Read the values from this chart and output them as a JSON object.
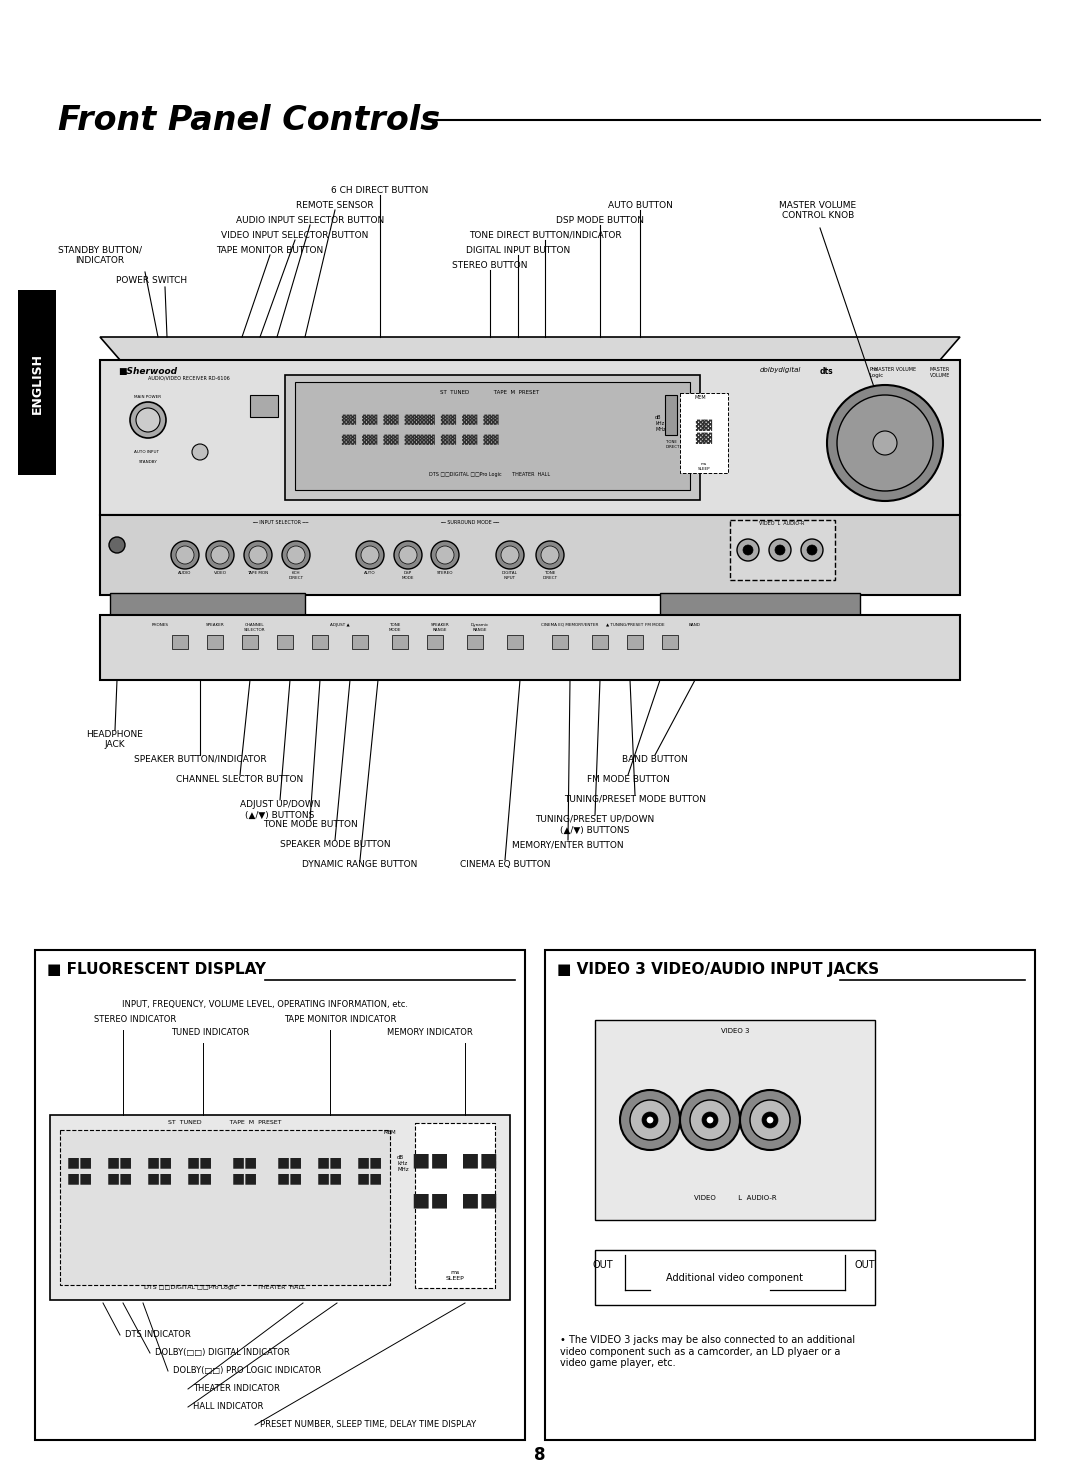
{
  "title": "Front Panel Controls",
  "page_number": "8",
  "bg_color": "#ffffff",
  "text_color": "#000000",
  "sidebar_bg": "#000000",
  "sidebar_text": "#ffffff",
  "sidebar_label": "ENGLISH",
  "fluorescent_title": "■ FLUORESCENT DISPLAY",
  "video_title": "■ VIDEO 3 VIDEO/AUDIO INPUT JACKS",
  "video_note": "The VIDEO 3 jacks may be also connected to an additional\nvideo component such as a camcorder, an LD plyaer or a\nvideo game player, etc.",
  "additional_video_text": "Additional video component",
  "dolby_dd": "DOLBY(□□) DIGITAL INDICATOR",
  "dolby_pro": "DOLBY(□□) PRO LOGIC INDICATOR"
}
